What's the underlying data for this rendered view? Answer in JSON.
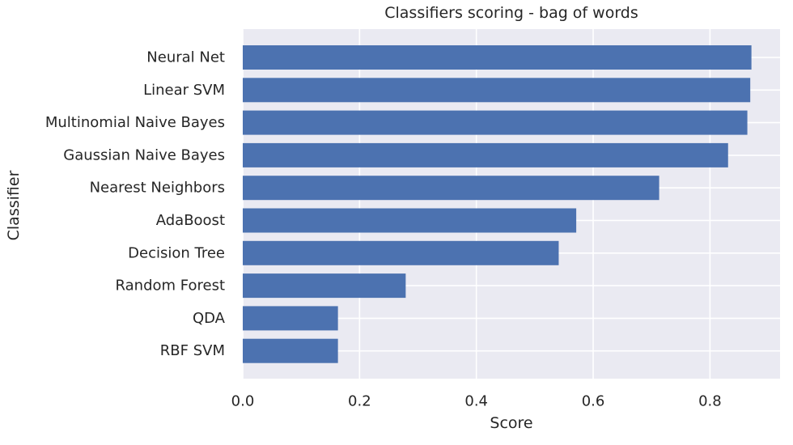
{
  "chart_data": {
    "type": "bar",
    "orientation": "horizontal",
    "title": "Classifiers scoring - bag of words",
    "xlabel": "Score",
    "ylabel": "Classifier",
    "xlim": [
      0,
      0.92
    ],
    "xticks": [
      0.0,
      0.2,
      0.4,
      0.6,
      0.8
    ],
    "xtick_labels": [
      "0.0",
      "0.2",
      "0.4",
      "0.6",
      "0.8"
    ],
    "grid": true,
    "categories": [
      "Neural Net",
      "Linear SVM",
      "Multinomial Naive Bayes",
      "Gaussian Naive Bayes",
      "Nearest Neighbors",
      "AdaBoost",
      "Decision Tree",
      "Random Forest",
      "QDA",
      "RBF SVM"
    ],
    "values": [
      0.871,
      0.869,
      0.864,
      0.831,
      0.713,
      0.571,
      0.541,
      0.279,
      0.163,
      0.163
    ],
    "colors": {
      "bar": "#4c72b0",
      "plot_background": "#eaeaf2",
      "grid": "#ffffff",
      "text": "#262626"
    }
  }
}
